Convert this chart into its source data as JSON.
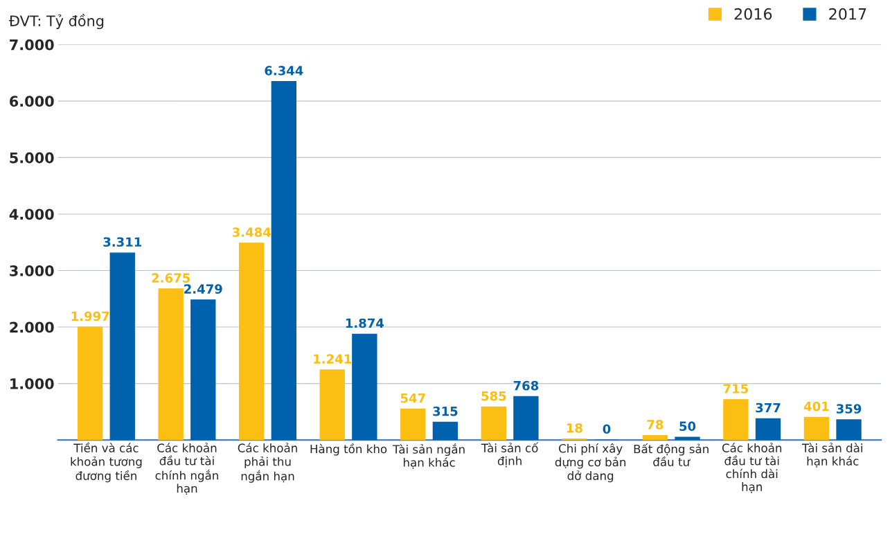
{
  "chart_data": {
    "type": "bar",
    "categories": [
      "Tiền và các khoản tương đương tiền",
      "Các khoản đầu tư tài chính ngắn hạn",
      "Các khoản phải thu ngắn hạn",
      "Hàng tồn kho",
      "Tài sản ngắn hạn khác",
      "Tài sản cố định",
      "Chi phí xây dựng cơ bản dở dang",
      "Bất động sản đầu tư",
      "Các khoản đầu tư tài chính dài hạn",
      "Tài sản dài hạn khác"
    ],
    "series": [
      {
        "name": "2016",
        "color": "#fbbf14",
        "values": [
          1997,
          2675,
          3484,
          1241,
          547,
          585,
          18,
          78,
          715,
          401
        ],
        "value_labels": [
          "1.997",
          "2.675",
          "3.484",
          "1.241",
          "547",
          "585",
          "18",
          "78",
          "715",
          "401"
        ]
      },
      {
        "name": "2017",
        "color": "#0061ad",
        "values": [
          3311,
          2479,
          6344,
          1874,
          315,
          768,
          0,
          50,
          377,
          359
        ],
        "value_labels": [
          "3.311",
          "2.479",
          "6.344",
          "1.874",
          "315",
          "768",
          "0",
          "50",
          "377",
          "359"
        ]
      }
    ],
    "ylim": [
      0,
      7000
    ],
    "yticks": [
      {
        "value": 1000,
        "label": "1.000"
      },
      {
        "value": 2000,
        "label": "2.000"
      },
      {
        "value": 3000,
        "label": "3.000"
      },
      {
        "value": 4000,
        "label": "4.000"
      },
      {
        "value": 5000,
        "label": "5.000"
      },
      {
        "value": 6000,
        "label": "6.000"
      },
      {
        "value": 7000,
        "label": "7.000"
      }
    ],
    "grid": "y",
    "legend": "top right",
    "annotations": [
      "ĐVT: Tỷ đồng"
    ]
  }
}
